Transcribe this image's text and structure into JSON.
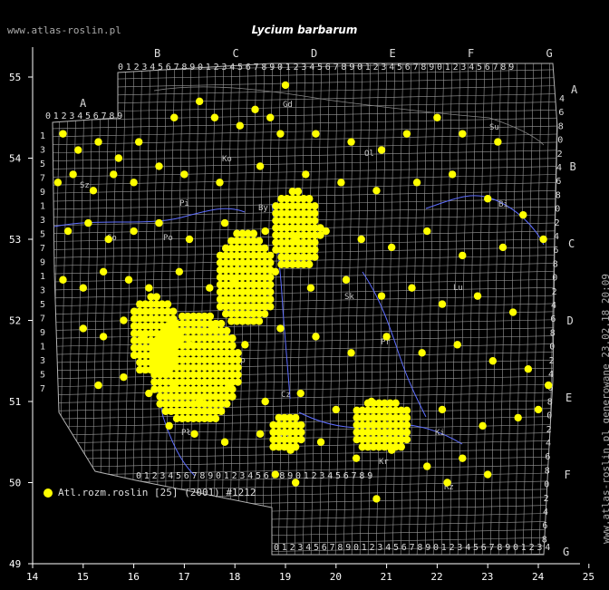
{
  "site_label": "www.atlas-roslin.pl",
  "title": "Lycium barbarum",
  "side_label": "www.atlas-roslin.pl generowane 23.02.18 20:09",
  "legend": {
    "label": "Atl.rozm.roslin [25] (2001) #1212",
    "color": "#ffff00"
  },
  "colors": {
    "background": "#000000",
    "grid": "#b4b4b4",
    "river": "#5f6fff",
    "points": "#ffff00",
    "axis": "#ffffff"
  },
  "x_axis": {
    "ticks": [
      "14",
      "15",
      "16",
      "17",
      "18",
      "19",
      "20",
      "21",
      "22",
      "23",
      "24",
      "25"
    ]
  },
  "y_axis": {
    "ticks": [
      "49",
      "50",
      "51",
      "52",
      "53",
      "54",
      "55"
    ]
  },
  "zone_letters_top": [
    "B",
    "C",
    "D",
    "E",
    "F",
    "G"
  ],
  "zone_letter_a": "A",
  "zone_letters_right": [
    "A",
    "B",
    "C",
    "D",
    "E",
    "F",
    "G"
  ],
  "city_labels": [
    "Ko",
    "Gd",
    "Ol",
    "Su",
    "Sz",
    "Pi",
    "By",
    "Bi",
    "Go",
    "Po",
    "Wa",
    "Lo",
    "Lu",
    "Wr",
    "Op",
    "Ka",
    "Kr",
    "Ki",
    "Rz",
    "Cz",
    "Gł",
    "Le",
    "Pł",
    "Sk",
    "Pr"
  ],
  "chart_data": {
    "type": "scatter",
    "x_label": "",
    "y_label": "",
    "xlim": [
      14,
      25
    ],
    "ylim": [
      49,
      55
    ],
    "series": [
      {
        "name": "Atl.rozm.roslin [25] (2001) #1212",
        "points": [
          [
            14.6,
            54.3
          ],
          [
            14.9,
            54.1
          ],
          [
            15.3,
            54.2
          ],
          [
            15.7,
            54.0
          ],
          [
            16.1,
            54.2
          ],
          [
            16.8,
            54.5
          ],
          [
            17.3,
            54.7
          ],
          [
            17.6,
            54.5
          ],
          [
            18.1,
            54.4
          ],
          [
            18.4,
            54.6
          ],
          [
            18.7,
            54.5
          ],
          [
            19.0,
            54.9
          ],
          [
            18.9,
            54.3
          ],
          [
            19.6,
            54.3
          ],
          [
            20.3,
            54.2
          ],
          [
            20.9,
            54.1
          ],
          [
            21.4,
            54.3
          ],
          [
            22.0,
            54.5
          ],
          [
            22.5,
            54.3
          ],
          [
            23.2,
            54.2
          ],
          [
            14.5,
            53.7
          ],
          [
            14.8,
            53.8
          ],
          [
            15.2,
            53.6
          ],
          [
            15.6,
            53.8
          ],
          [
            16.0,
            53.7
          ],
          [
            16.5,
            53.9
          ],
          [
            17.0,
            53.8
          ],
          [
            17.7,
            53.7
          ],
          [
            18.5,
            53.9
          ],
          [
            19.4,
            53.8
          ],
          [
            20.1,
            53.7
          ],
          [
            20.8,
            53.6
          ],
          [
            21.6,
            53.7
          ],
          [
            22.3,
            53.8
          ],
          [
            23.0,
            53.5
          ],
          [
            23.7,
            53.3
          ],
          [
            24.1,
            53.0
          ],
          [
            14.7,
            53.1
          ],
          [
            15.1,
            53.2
          ],
          [
            15.5,
            53.0
          ],
          [
            16.0,
            53.1
          ],
          [
            16.5,
            53.2
          ],
          [
            17.1,
            53.0
          ],
          [
            17.8,
            53.2
          ],
          [
            18.6,
            53.1
          ],
          [
            19.2,
            53.0
          ],
          [
            19.8,
            53.1
          ],
          [
            20.5,
            53.0
          ],
          [
            21.1,
            52.9
          ],
          [
            21.8,
            53.1
          ],
          [
            22.5,
            52.8
          ],
          [
            23.3,
            52.9
          ],
          [
            14.6,
            52.5
          ],
          [
            15.0,
            52.4
          ],
          [
            15.4,
            52.6
          ],
          [
            15.9,
            52.5
          ],
          [
            16.3,
            52.4
          ],
          [
            16.9,
            52.6
          ],
          [
            17.5,
            52.4
          ],
          [
            18.0,
            52.5
          ],
          [
            18.8,
            52.6
          ],
          [
            19.5,
            52.4
          ],
          [
            20.2,
            52.5
          ],
          [
            20.9,
            52.3
          ],
          [
            21.5,
            52.4
          ],
          [
            22.1,
            52.2
          ],
          [
            22.8,
            52.3
          ],
          [
            23.5,
            52.1
          ],
          [
            15.0,
            51.9
          ],
          [
            15.4,
            51.8
          ],
          [
            15.8,
            52.0
          ],
          [
            16.2,
            51.8
          ],
          [
            16.6,
            51.9
          ],
          [
            17.1,
            51.7
          ],
          [
            17.6,
            51.9
          ],
          [
            18.2,
            51.7
          ],
          [
            18.9,
            51.9
          ],
          [
            19.6,
            51.8
          ],
          [
            20.3,
            51.6
          ],
          [
            21.0,
            51.8
          ],
          [
            21.7,
            51.6
          ],
          [
            22.4,
            51.7
          ],
          [
            23.1,
            51.5
          ],
          [
            23.8,
            51.4
          ],
          [
            24.2,
            51.2
          ],
          [
            15.3,
            51.2
          ],
          [
            15.8,
            51.3
          ],
          [
            16.3,
            51.1
          ],
          [
            16.8,
            51.2
          ],
          [
            17.3,
            51.0
          ],
          [
            17.9,
            51.2
          ],
          [
            18.6,
            51.0
          ],
          [
            19.3,
            51.1
          ],
          [
            20.0,
            50.9
          ],
          [
            20.7,
            51.0
          ],
          [
            21.4,
            50.8
          ],
          [
            22.1,
            50.9
          ],
          [
            22.9,
            50.7
          ],
          [
            23.6,
            50.8
          ],
          [
            24.0,
            50.9
          ],
          [
            16.7,
            50.7
          ],
          [
            17.2,
            50.6
          ],
          [
            17.8,
            50.5
          ],
          [
            18.5,
            50.6
          ],
          [
            19.1,
            50.4
          ],
          [
            19.7,
            50.5
          ],
          [
            20.4,
            50.3
          ],
          [
            21.1,
            50.4
          ],
          [
            21.8,
            50.2
          ],
          [
            22.5,
            50.3
          ],
          [
            23.0,
            50.1
          ],
          [
            19.2,
            50.0
          ],
          [
            20.8,
            49.8
          ],
          [
            22.2,
            50.0
          ],
          [
            18.8,
            50.1
          ]
        ]
      }
    ]
  }
}
